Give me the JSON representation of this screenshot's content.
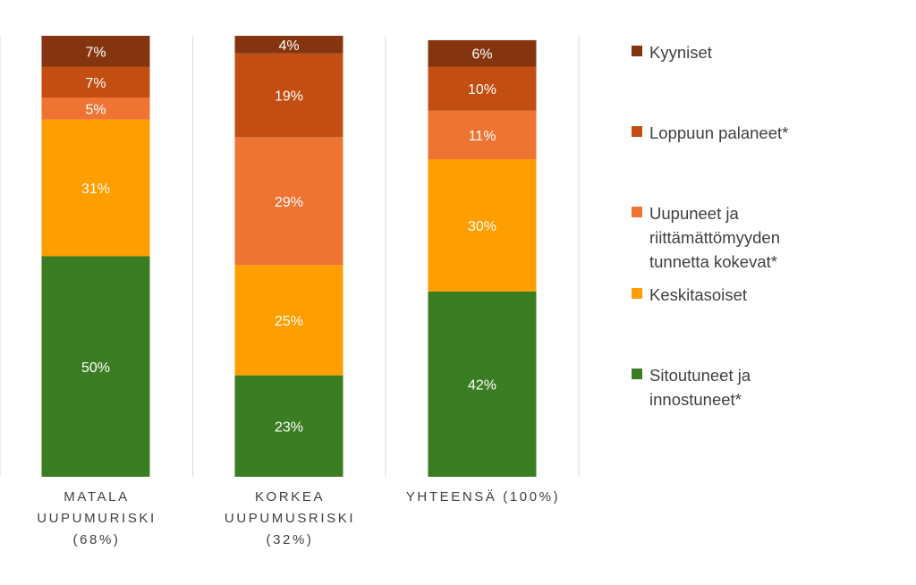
{
  "chart_data": {
    "type": "bar",
    "stacked": true,
    "percent": true,
    "categories": [
      "MATALA\nUUPUMURISKI\n(68%)",
      "KORKEA\nUUPUMUSRISKI\n(32%)",
      "YHTEENSÄ (100%)"
    ],
    "ylim": [
      0,
      100
    ],
    "grid": false,
    "legend_position": "right",
    "series": [
      {
        "name": "Sitoutuneet ja\ninnostuneet*",
        "color": "#3b7d23",
        "values": [
          50,
          23,
          42
        ],
        "labels": [
          "50%",
          "23%",
          "42%"
        ]
      },
      {
        "name": "Keskitasoiset",
        "color": "#ff9e00",
        "values": [
          31,
          25,
          30
        ],
        "labels": [
          "31%",
          "25%",
          "30%"
        ]
      },
      {
        "name": "Uupuneet ja\nriittämättömyyden\ntunnetta kokevat*",
        "color": "#ed7433",
        "values": [
          5,
          29,
          11
        ],
        "labels": [
          "5%",
          "29%",
          "11%"
        ]
      },
      {
        "name": "Loppuun palaneet*",
        "color": "#c24e12",
        "values": [
          7,
          19,
          10
        ],
        "labels": [
          "7%",
          "19%",
          "10%"
        ]
      },
      {
        "name": "Kyyniset",
        "color": "#843510",
        "values": [
          7,
          4,
          6
        ],
        "labels": [
          "7%",
          "4%",
          "6%"
        ]
      }
    ]
  }
}
